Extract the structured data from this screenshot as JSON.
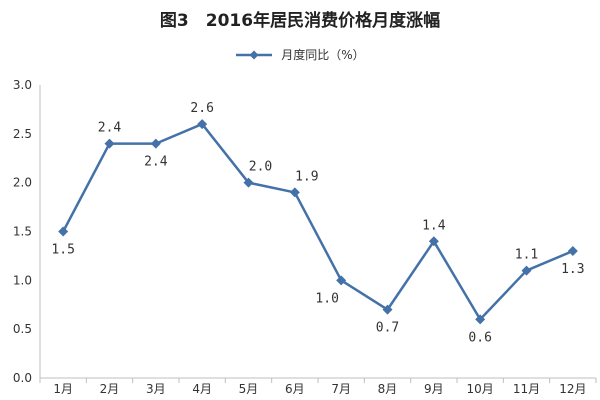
{
  "chart_data": {
    "type": "line",
    "title": "图3　2016年居民消费价格月度涨幅",
    "xlabel": "",
    "ylabel": "",
    "categories": [
      "1月",
      "2月",
      "3月",
      "4月",
      "5月",
      "6月",
      "7月",
      "8月",
      "9月",
      "10月",
      "11月",
      "12月"
    ],
    "series": [
      {
        "name": "月度同比（%）",
        "values": [
          1.5,
          2.4,
          2.4,
          2.6,
          2.0,
          1.9,
          1.0,
          0.7,
          1.4,
          0.6,
          1.1,
          1.3
        ],
        "data_labels": [
          "1.5",
          "2.4",
          "2.4",
          "2.6",
          "2.0",
          "1.9",
          "1.0",
          "0.7",
          "1.4",
          "0.6",
          "1.1",
          "1.3"
        ],
        "color": "#4472a8"
      }
    ],
    "ylim": [
      0,
      3.0
    ],
    "y_ticks": [
      "0.0",
      "0.5",
      "1.0",
      "1.5",
      "2.0",
      "2.5",
      "3.0"
    ],
    "grid": false,
    "legend_position": "top",
    "marker": "diamond"
  }
}
